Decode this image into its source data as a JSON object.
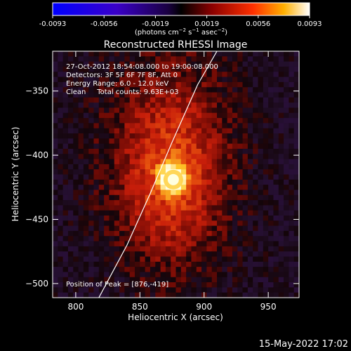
{
  "chart_data": {
    "type": "heatmap",
    "title": "Reconstructed RHESSI Image",
    "colorbar": {
      "ticks": [
        "-0.0093",
        "-0.0056",
        "-0.0019",
        "0.0019",
        "0.0056",
        "0.0093"
      ],
      "range": [
        -0.0093,
        0.0093
      ],
      "label_prefix": "(photons cm",
      "label_exp1": "−2",
      "label_mid": " s",
      "label_exp2": "−1",
      "label_mid2": " asec",
      "label_exp3": "−2",
      "label_suffix": ")",
      "colors": [
        "#0000ff",
        "#3a00c8",
        "#1a0040",
        "#000000",
        "#8b0000",
        "#ff3000",
        "#ffb000",
        "#ffffff"
      ]
    },
    "xlabel": "Heliocentric X (arcsec)",
    "ylabel": "Heliocentric Y (arcsec)",
    "xlim": [
      782,
      974
    ],
    "ylim": [
      -511,
      -319
    ],
    "xticks": [
      800,
      850,
      900,
      950
    ],
    "yticks": [
      -350,
      -400,
      -450,
      -500
    ],
    "xtick_labels": [
      "800",
      "850",
      "900",
      "950"
    ],
    "ytick_labels": [
      "−350",
      "−400",
      "−450",
      "−500"
    ],
    "peak": {
      "x": 876,
      "y": -419
    },
    "limb_points": [
      [
        818,
        -511
      ],
      [
        840,
        -470
      ],
      [
        858,
        -430
      ],
      [
        875,
        -390
      ],
      [
        895,
        -345
      ],
      [
        910,
        -319
      ]
    ],
    "info_lines": [
      "27-Oct-2012 18:54:08.000 to 19:00:08.000",
      "Detectors: 3F 5F 6F 7F 8F, Att 0",
      "Energy Range: 6.0 - 12.0 keV",
      "Clean     Total counts: 9.63E+03"
    ],
    "peak_label": "Position of Peak = [876,-419]",
    "grid": false
  },
  "footer_date": "15-May-2022 17:02"
}
